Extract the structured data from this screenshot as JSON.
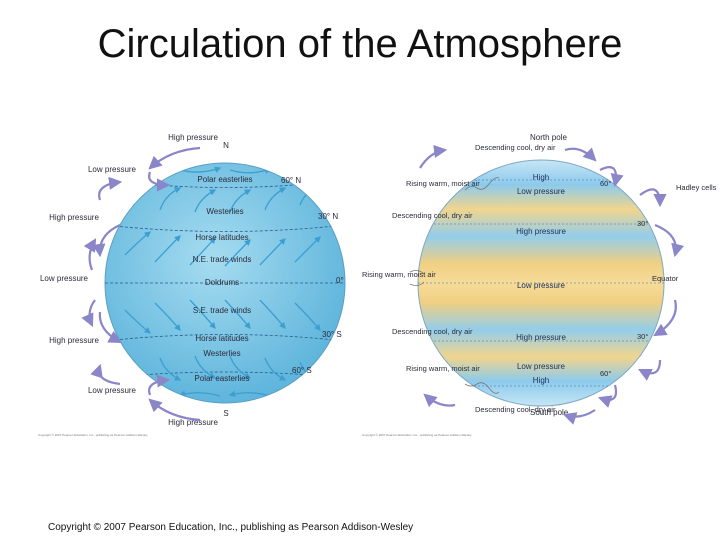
{
  "title": "Circulation of the Atmosphere",
  "copyright": "Copyright © 2007 Pearson Education, Inc., publishing as Pearson Addison-Wesley",
  "left_globe": {
    "pressure_labels": {
      "top": "High pressure",
      "ul": "Low pressure",
      "ml": "High pressure",
      "eq": "Low pressure",
      "ll": "High pressure",
      "bl": "Low pressure",
      "bottom": "High pressure"
    },
    "poles": {
      "north": "N",
      "south": "S"
    },
    "latitudes": {
      "n60": "60° N",
      "n30": "30° N",
      "eq": "0°",
      "s30": "30° S",
      "s60": "60° S"
    },
    "zones": {
      "polar_n": "Polar easterlies",
      "westerlies_n": "Westerlies",
      "horse_n": "Horse latitudes",
      "ne_trade": "N.E. trade winds",
      "doldrums": "Doldrums",
      "se_trade": "S.E. trade winds",
      "horse_s": "Horse latitudes",
      "westerlies_s": "Westerlies",
      "polar_s": "Polar easterlies"
    },
    "credit": "Copyright © 2007 Pearson Education, Inc., publishing as Pearson Addison-Wesley"
  },
  "right_globe": {
    "north_pole": "North pole",
    "south_pole": "South pole",
    "descending_top": "Descending cool, dry air",
    "rising_n60": "Rising warm, moist air",
    "descending_n30": "Descending cool, dry air",
    "rising_eq": "Rising warm, moist air",
    "descending_s30": "Descending cool, dry air",
    "rising_s60": "Rising warm, moist air",
    "descending_bottom": "Descending cool, dry air",
    "bands": {
      "high_n": "High",
      "low_n": "Low pressure",
      "high_n30": "High pressure",
      "low_eq": "Low pressure",
      "high_s30": "High pressure",
      "low_s": "Low pressure",
      "high_s": "High"
    },
    "lat_ticks": {
      "n60": "60°",
      "n30": "30°",
      "eq": "Equator",
      "s30": "30°",
      "s60": "60°"
    },
    "hadley": "Hadley cells",
    "credit": "Copyright © 2007 Pearson Education, Inc., publishing as Pearson Addison-Wesley"
  },
  "colors": {
    "ocean_blue": "#7ecbe6",
    "arrow_blue": "#3b9fd1",
    "cell_arrow": "#8a86c8",
    "band_yellow": "#f3d58c",
    "band_blue": "#8cc8ea"
  }
}
